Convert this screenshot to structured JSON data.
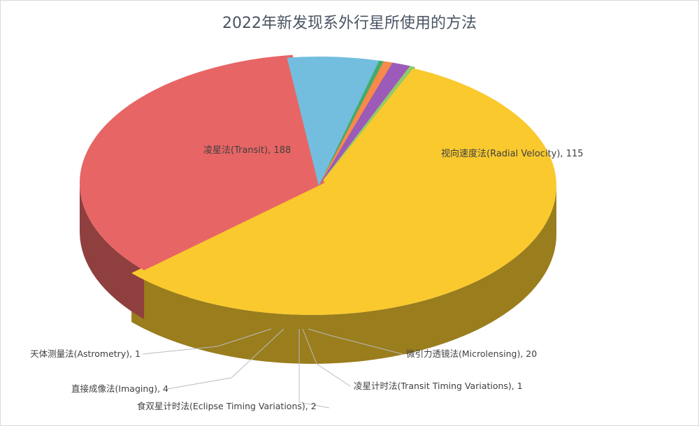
{
  "chart_data": {
    "type": "pie",
    "title": "2022年新发现系外行星所使用的方法",
    "unit": "",
    "slices": [
      {
        "name": "凌星法(Transit)",
        "value": 188,
        "color": "#F9C92E",
        "label": "凌星法(Transit), 188"
      },
      {
        "name": "视向速度法(Radial Velocity)",
        "value": 115,
        "color": "#E86565",
        "label": "视向速度法(Radial Velocity), 115"
      },
      {
        "name": "微引力透镜法(Microlensing)",
        "value": 20,
        "color": "#73BEDF",
        "label": "微引力透镜法(Microlensing), 20"
      },
      {
        "name": "凌星计时法(Transit Timing Variations)",
        "value": 1,
        "color": "#3FAE6A",
        "label": "凌星计时法(Transit Timing Variations), 1"
      },
      {
        "name": "食双星计时法(Eclipse Timing Variations)",
        "value": 2,
        "color": "#F58A4B",
        "label": "食双星计时法(Eclipse Timing Variations), 2"
      },
      {
        "name": "直接成像法(Imaging)",
        "value": 4,
        "color": "#9C5BB8",
        "label": "直接成像法(Imaging), 4"
      },
      {
        "name": "天体测量法(Astrometry)",
        "value": 1,
        "color": "#8FCB6B",
        "label": "天体测量法(Astrometry), 1"
      }
    ],
    "style": "3d-exploded"
  }
}
